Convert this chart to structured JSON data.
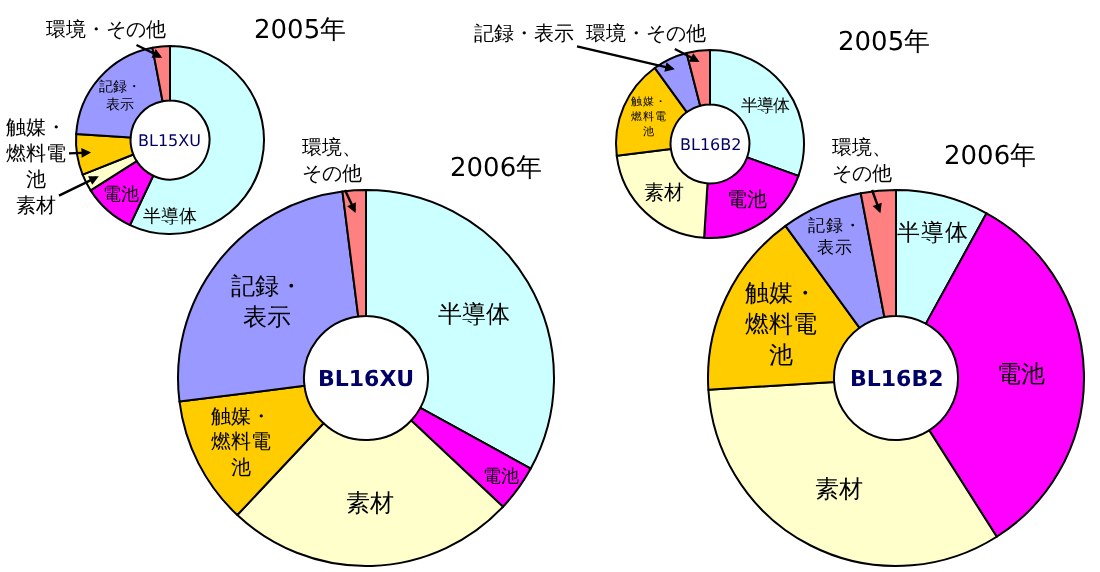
{
  "chart_data": [
    {
      "type": "donut",
      "title": "2005年",
      "categories": [
        "半導体",
        "電池",
        "素材",
        "触媒・燃料電池",
        "記録・表示",
        "環境・その他"
      ],
      "values": [
        57,
        9,
        3,
        7,
        21,
        3
      ],
      "colors": [
        "#ccffff",
        "#ff00ff",
        "#ffffcc",
        "#ffcc00",
        "#9999ff",
        "#ff8080"
      ],
      "annotations": [
        "BL15XU"
      ]
    },
    {
      "type": "donut",
      "title": "2006年",
      "categories": [
        "半導体",
        "電池",
        "素材",
        "触媒・燃料電池",
        "記録・表示",
        "環境、その他"
      ],
      "values": [
        33,
        4,
        25,
        11,
        25,
        2
      ],
      "colors": [
        "#ccffff",
        "#ff00ff",
        "#ffffcc",
        "#ffcc00",
        "#9999ff",
        "#ff8080"
      ],
      "annotations": [
        "BL16XU"
      ]
    },
    {
      "type": "donut",
      "title": "2005年",
      "categories": [
        "半導体",
        "電池",
        "素材",
        "触媒・燃料電池",
        "記録・表示",
        "環境・その他"
      ],
      "values": [
        30.5,
        20.5,
        22,
        17,
        6,
        4
      ],
      "colors": [
        "#ccffff",
        "#ff00ff",
        "#ffffcc",
        "#ffcc00",
        "#9999ff",
        "#ff8080"
      ],
      "annotations": [
        "BL16B2"
      ]
    },
    {
      "type": "donut",
      "title": "2006年",
      "categories": [
        "半導体",
        "電池",
        "素材",
        "触媒・燃料電池",
        "記録・表示",
        "環境、その他"
      ],
      "values": [
        8,
        33,
        33,
        16,
        7,
        3
      ],
      "colors": [
        "#ccffff",
        "#ff00ff",
        "#ffffcc",
        "#ffcc00",
        "#9999ff",
        "#ff8080"
      ],
      "annotations": [
        "BL16B2"
      ]
    }
  ]
}
